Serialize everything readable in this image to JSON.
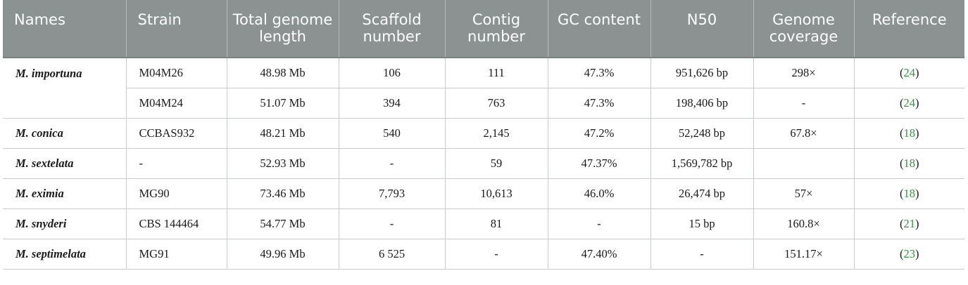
{
  "headers": [
    "Names",
    "Strain",
    "Total genome length",
    "Scaffold number",
    "Contig number",
    "GC content",
    "N50",
    "Genome coverage",
    "Reference"
  ],
  "rows": [
    {
      "name": "M. importuna",
      "strain": "M04M26",
      "length": "48.98 Mb",
      "scaffold": "106",
      "contig": "111",
      "gc": "47.3%",
      "n50": "951,626 bp",
      "coverage": "298×",
      "ref": "24"
    },
    {
      "name": "",
      "strain": "M04M24",
      "length": "51.07 Mb",
      "scaffold": "394",
      "contig": "763",
      "gc": "47.3%",
      "n50": "198,406 bp",
      "coverage": "-",
      "ref": "24"
    },
    {
      "name": "M. conica",
      "strain": "CCBAS932",
      "length": "48.21 Mb",
      "scaffold": "540",
      "contig": "2,145",
      "gc": "47.2%",
      "n50": "52,248 bp",
      "coverage": "67.8×",
      "ref": "18"
    },
    {
      "name": "M. sextelata",
      "strain": "-",
      "length": "52.93 Mb",
      "scaffold": "-",
      "contig": "59",
      "gc": "47.37%",
      "n50": "1,569,782 bp",
      "coverage": "",
      "ref": "18"
    },
    {
      "name": "M. eximia",
      "strain": "MG90",
      "length": "73.46 Mb",
      "scaffold": "7,793",
      "contig": "10,613",
      "gc": "46.0%",
      "n50": "26,474 bp",
      "coverage": "57×",
      "ref": "18"
    },
    {
      "name": "M. snyderi",
      "strain": "CBS 144464",
      "length": "54.77 Mb",
      "scaffold": "-",
      "contig": "81",
      "gc": "-",
      "n50": "15 bp",
      "coverage": "160.8×",
      "ref": "21"
    },
    {
      "name": "M. septimelata",
      "strain": "MG91",
      "length": "49.96 Mb",
      "scaffold": "6 525",
      "contig": "-",
      "gc": "47.40%",
      "n50": "-",
      "coverage": "151.17×",
      "ref": "23"
    }
  ],
  "ref_paren_open": "(",
  "ref_paren_close": ")",
  "colors": {
    "header_bg": "#8c9191",
    "link": "#2e9a3a"
  }
}
